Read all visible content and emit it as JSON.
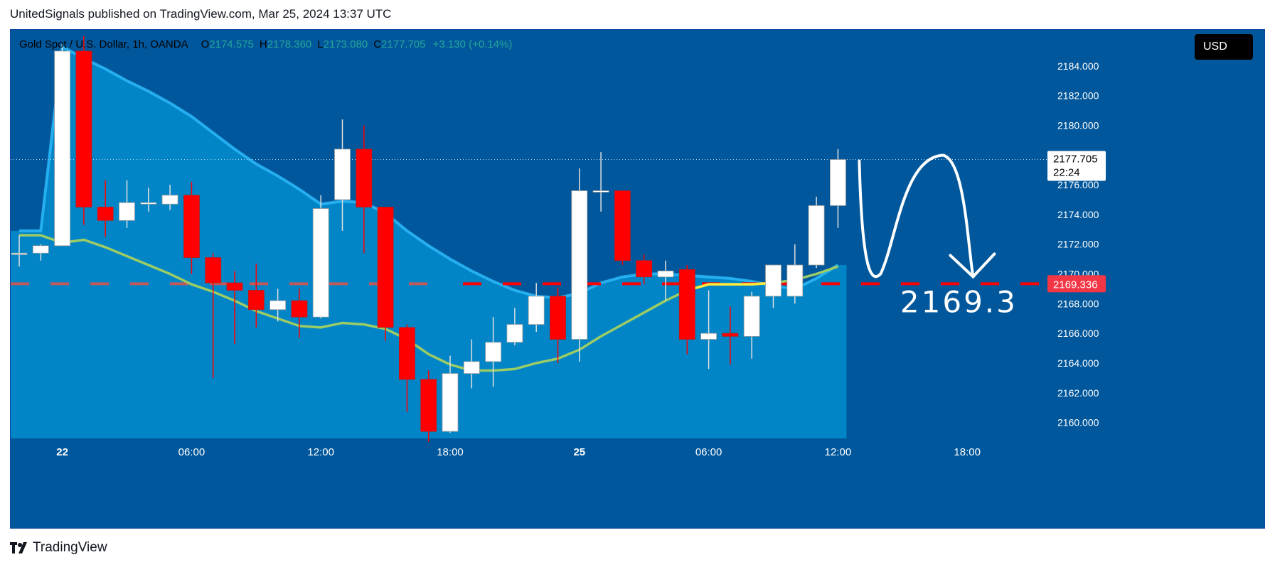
{
  "caption": "UnitedSignals published on TradingView.com, Mar 25, 2024 13:37 UTC",
  "legend": {
    "symbol": "Gold Spot / U.S. Dollar, 1h, OANDA",
    "o_label": "O",
    "o_value": "2174.575",
    "h_label": "H",
    "h_value": "2178.360",
    "l_label": "L",
    "l_value": "2173.080",
    "c_label": "C",
    "c_value": "2177.705",
    "change": "+3.130 (+0.14%)"
  },
  "currency_button": "USD",
  "last_price_tag": {
    "price": "2177.705",
    "countdown": "22:24"
  },
  "level_tag": "2169.336",
  "annotation_text": "2169.3",
  "footer_brand": "TradingView",
  "colors": {
    "background": "#01579b",
    "band_fill": "#0288c8",
    "bull": "#ffffff",
    "bear": "#ff0000",
    "ema": "#9ccc65",
    "ema_recent": "#ffeb3b",
    "band_top": "#29b6f6",
    "level_line": "#ff0000",
    "level_tag_bg": "#f23645"
  },
  "chart_data": {
    "type": "candlestick",
    "symbol": "Gold Spot / U.S. Dollar",
    "timeframe": "1h",
    "ylim": [
      2158.5,
      2186.0
    ],
    "y_ticks": [
      "2184.000",
      "2182.000",
      "2180.000",
      "2178.000",
      "2176.000",
      "2174.000",
      "2172.000",
      "2170.000",
      "2168.000",
      "2166.000",
      "2164.000",
      "2162.000",
      "2160.000"
    ],
    "x_ticks": [
      {
        "label": "22",
        "index": 2
      },
      {
        "label": "06:00",
        "index": 8
      },
      {
        "label": "12:00",
        "index": 14
      },
      {
        "label": "18:00",
        "index": 20
      },
      {
        "label": "25",
        "index": 26
      },
      {
        "label": "06:00",
        "index": 32
      },
      {
        "label": "12:00",
        "index": 38
      },
      {
        "label": "18:00",
        "index": 44
      }
    ],
    "candles": [
      {
        "o": 2171.4,
        "h": 2172.6,
        "l": 2170.5,
        "c": 2171.4
      },
      {
        "o": 2171.4,
        "h": 2172.0,
        "l": 2170.9,
        "c": 2171.9
      },
      {
        "o": 2171.9,
        "h": 2185.5,
        "l": 2171.9,
        "c": 2185.0
      },
      {
        "o": 2185.0,
        "h": 2186.0,
        "l": 2173.3,
        "c": 2174.5
      },
      {
        "o": 2174.5,
        "h": 2176.3,
        "l": 2172.5,
        "c": 2173.6
      },
      {
        "o": 2173.6,
        "h": 2176.3,
        "l": 2173.1,
        "c": 2174.8
      },
      {
        "o": 2174.7,
        "h": 2175.8,
        "l": 2174.2,
        "c": 2174.8
      },
      {
        "o": 2174.7,
        "h": 2176.0,
        "l": 2174.3,
        "c": 2175.3
      },
      {
        "o": 2175.3,
        "h": 2176.2,
        "l": 2170.0,
        "c": 2171.1
      },
      {
        "o": 2171.1,
        "h": 2171.4,
        "l": 2163.0,
        "c": 2169.4
      },
      {
        "o": 2169.4,
        "h": 2170.2,
        "l": 2165.3,
        "c": 2168.9
      },
      {
        "o": 2168.9,
        "h": 2170.7,
        "l": 2166.4,
        "c": 2167.6
      },
      {
        "o": 2167.6,
        "h": 2169.0,
        "l": 2166.8,
        "c": 2168.2
      },
      {
        "o": 2168.2,
        "h": 2169.0,
        "l": 2165.7,
        "c": 2167.1
      },
      {
        "o": 2167.1,
        "h": 2175.3,
        "l": 2167.0,
        "c": 2174.4
      },
      {
        "o": 2175.0,
        "h": 2180.4,
        "l": 2172.9,
        "c": 2178.4
      },
      {
        "o": 2178.4,
        "h": 2180.0,
        "l": 2171.4,
        "c": 2174.5
      },
      {
        "o": 2174.5,
        "h": 2174.5,
        "l": 2165.5,
        "c": 2166.4
      },
      {
        "o": 2166.4,
        "h": 2166.6,
        "l": 2160.7,
        "c": 2162.9
      },
      {
        "o": 2162.9,
        "h": 2163.5,
        "l": 2158.7,
        "c": 2159.4
      },
      {
        "o": 2159.4,
        "h": 2164.5,
        "l": 2159.3,
        "c": 2163.3
      },
      {
        "o": 2163.3,
        "h": 2165.6,
        "l": 2162.3,
        "c": 2164.1
      },
      {
        "o": 2164.1,
        "h": 2167.1,
        "l": 2162.4,
        "c": 2165.4
      },
      {
        "o": 2165.4,
        "h": 2167.7,
        "l": 2165.2,
        "c": 2166.6
      },
      {
        "o": 2166.6,
        "h": 2169.4,
        "l": 2166.1,
        "c": 2168.5
      },
      {
        "o": 2168.5,
        "h": 2169.1,
        "l": 2164.0,
        "c": 2165.6
      },
      {
        "o": 2165.6,
        "h": 2177.1,
        "l": 2164.1,
        "c": 2175.6
      },
      {
        "o": 2175.6,
        "h": 2178.2,
        "l": 2174.2,
        "c": 2175.6
      },
      {
        "o": 2175.6,
        "h": 2175.6,
        "l": 2170.6,
        "c": 2170.9
      },
      {
        "o": 2170.9,
        "h": 2171.3,
        "l": 2169.3,
        "c": 2169.8
      },
      {
        "o": 2169.8,
        "h": 2170.9,
        "l": 2168.2,
        "c": 2170.2
      },
      {
        "o": 2170.3,
        "h": 2170.6,
        "l": 2164.6,
        "c": 2165.6
      },
      {
        "o": 2165.6,
        "h": 2168.9,
        "l": 2163.6,
        "c": 2166.0
      },
      {
        "o": 2166.0,
        "h": 2167.8,
        "l": 2163.9,
        "c": 2165.8
      },
      {
        "o": 2165.8,
        "h": 2168.8,
        "l": 2164.3,
        "c": 2168.5
      },
      {
        "o": 2168.5,
        "h": 2170.4,
        "l": 2167.7,
        "c": 2170.6
      },
      {
        "o": 2168.5,
        "h": 2172.0,
        "l": 2168.0,
        "c": 2170.6
      },
      {
        "o": 2170.6,
        "h": 2175.2,
        "l": 2170.4,
        "c": 2174.6
      },
      {
        "o": 2174.6,
        "h": 2178.4,
        "l": 2173.1,
        "c": 2177.7
      }
    ],
    "ema_line": [
      2172.6,
      2172.6,
      2172.1,
      2172.3,
      2171.8,
      2171.2,
      2170.6,
      2170.0,
      2169.3,
      2168.8,
      2168.2,
      2167.5,
      2167.0,
      2166.5,
      2166.4,
      2166.7,
      2166.6,
      2166.3,
      2165.6,
      2164.6,
      2163.9,
      2163.5,
      2163.5,
      2163.6,
      2164.0,
      2164.3,
      2164.9,
      2165.8,
      2166.6,
      2167.4,
      2168.2,
      2168.9,
      2169.3,
      2169.3,
      2169.3,
      2169.4,
      2169.6,
      2170.0,
      2170.5
    ],
    "band_top": [
      2172.9,
      2172.9,
      2185.3,
      2184.5,
      2183.8,
      2183.0,
      2182.3,
      2181.5,
      2180.6,
      2179.5,
      2178.4,
      2177.4,
      2176.6,
      2175.7,
      2174.7,
      2174.9,
      2174.8,
      2174.1,
      2172.9,
      2171.9,
      2171.0,
      2170.2,
      2169.5,
      2168.9,
      2168.5,
      2168.4,
      2168.7,
      2169.4,
      2169.8,
      2170.0,
      2170.0,
      2169.9,
      2169.8,
      2169.7,
      2169.5,
      2169.2,
      2169.0,
      2169.7,
      2170.6
    ],
    "level": 2169.336,
    "projection_label": "2169.3"
  }
}
